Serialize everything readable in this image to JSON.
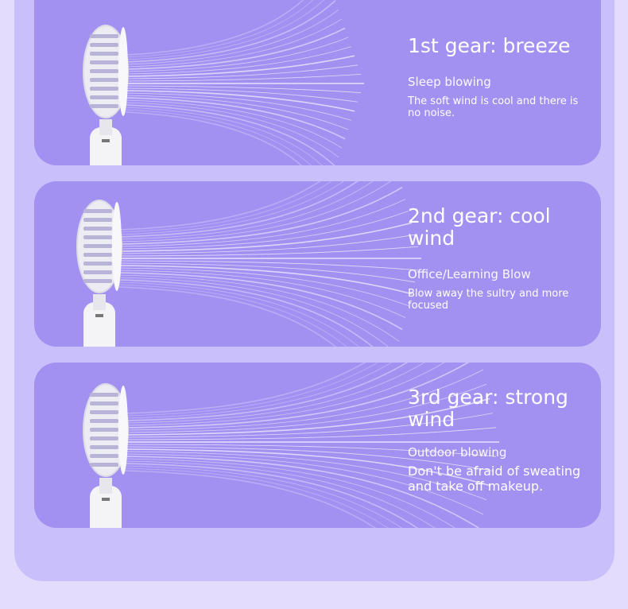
{
  "colors": {
    "background": "#e3dcfc",
    "panel": "#c9c0fb",
    "card": "#a391f2",
    "text": "#ffffff"
  },
  "gears": [
    {
      "title": "1st gear: breeze",
      "subtitle": "Sleep blowing",
      "description": "The soft wind is cool and there is no noise.",
      "image": "handheld-fan-icon"
    },
    {
      "title": "2nd gear: cool wind",
      "subtitle": "Office/Learning Blow",
      "description": "Blow away the sultry and more focused",
      "image": "handheld-fan-icon"
    },
    {
      "title": "3rd gear: strong wind",
      "subtitle": "Outdoor blowing",
      "description": "Don't be afraid of sweating and take off makeup.",
      "image": "handheld-fan-icon"
    }
  ]
}
